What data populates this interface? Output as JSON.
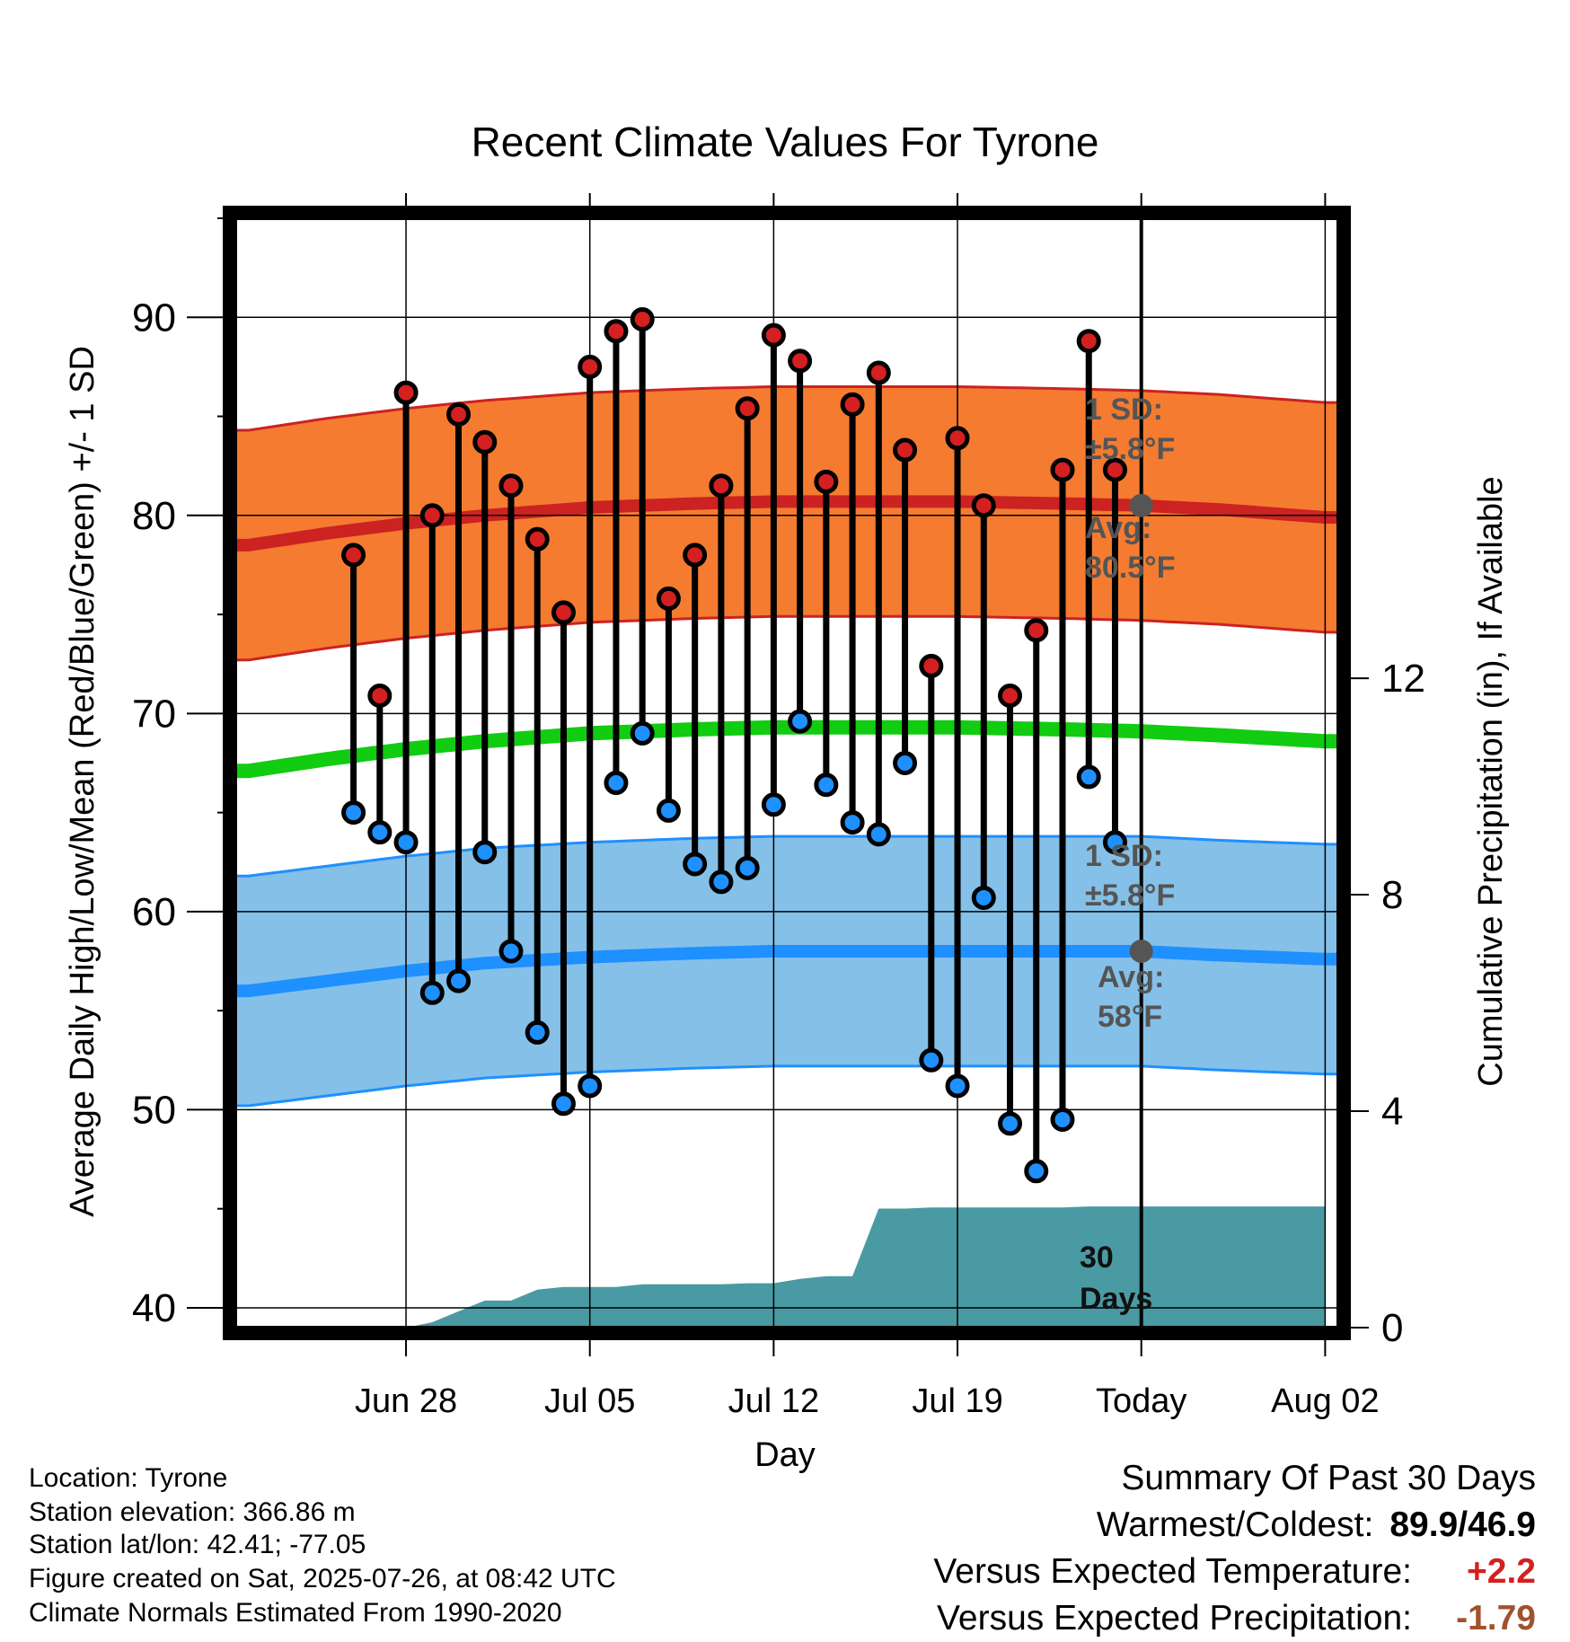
{
  "chart_data": {
    "type": "line",
    "title": "Recent Climate Values For Tyrone",
    "xlabel": "Day",
    "ylabel": "Average Daily High/Low/Mean (Red/Blue/Green) +/- 1 SD",
    "y2label": "Cumulative Precipitation (in), If Available",
    "ylim": [
      39,
      95
    ],
    "y2lim": [
      0,
      20.5
    ],
    "xlim": [
      -3.5,
      38.5
    ],
    "x_units": "days from Jun 25",
    "x_tick_days": [
      3,
      10,
      17,
      24,
      31,
      38
    ],
    "x_tick_labels": [
      "Jun 28",
      "Jul 05",
      "Jul 12",
      "Jul 19",
      "Today",
      "Aug 02"
    ],
    "y_ticks": [
      40,
      50,
      60,
      70,
      80,
      90
    ],
    "y2_ticks": [
      0,
      4,
      8,
      12
    ],
    "grid": true,
    "today_day": 31,
    "days": [
      1,
      2,
      3,
      4,
      5,
      6,
      7,
      8,
      9,
      10,
      11,
      12,
      13,
      14,
      15,
      16,
      17,
      18,
      19,
      20,
      21,
      22,
      23,
      24,
      25,
      26,
      27,
      28,
      29,
      30
    ],
    "daily_high": [
      78.0,
      70.9,
      86.2,
      80.0,
      85.1,
      83.7,
      81.5,
      78.8,
      75.1,
      87.5,
      89.3,
      89.9,
      75.8,
      78.0,
      81.5,
      85.4,
      89.1,
      87.8,
      81.7,
      85.6,
      87.2,
      83.3,
      72.4,
      83.9,
      80.5,
      70.9,
      74.2,
      82.3,
      88.8,
      82.3
    ],
    "daily_low": [
      65.0,
      64.0,
      63.5,
      55.9,
      56.5,
      63.0,
      58.0,
      53.9,
      50.3,
      51.2,
      66.5,
      69.0,
      65.1,
      62.4,
      61.5,
      62.2,
      65.4,
      69.6,
      66.4,
      64.5,
      63.9,
      67.5,
      52.5,
      51.2,
      60.7,
      49.3,
      46.9,
      49.5,
      66.8,
      63.5
    ],
    "normal_high": {
      "days": [
        -3,
        0,
        3,
        6,
        10,
        14,
        17,
        20,
        24,
        28,
        31,
        34,
        38
      ],
      "values": [
        78.5,
        79.1,
        79.6,
        80.0,
        80.4,
        80.6,
        80.7,
        80.7,
        80.7,
        80.6,
        80.5,
        80.3,
        79.9
      ],
      "sd": 5.8
    },
    "normal_low": {
      "days": [
        -3,
        0,
        3,
        6,
        10,
        14,
        17,
        20,
        24,
        28,
        31,
        34,
        38
      ],
      "values": [
        56.0,
        56.5,
        57.0,
        57.4,
        57.7,
        57.9,
        58.0,
        58.0,
        58.0,
        58.0,
        58.0,
        57.8,
        57.6
      ],
      "sd": 5.8
    },
    "normal_mean": {
      "days": [
        -3,
        0,
        3,
        6,
        10,
        14,
        17,
        20,
        24,
        28,
        31,
        34,
        38
      ],
      "values": [
        67.1,
        67.7,
        68.2,
        68.6,
        69.0,
        69.2,
        69.3,
        69.3,
        69.3,
        69.2,
        69.1,
        68.9,
        68.6
      ]
    },
    "precip_cumulative": {
      "days": [
        -3,
        3,
        4,
        5,
        6,
        7,
        8,
        9,
        10,
        11,
        12,
        13,
        14,
        15,
        16,
        17,
        18,
        19,
        20,
        21,
        22,
        23,
        24,
        25,
        26,
        27,
        28,
        29,
        30,
        31,
        38
      ],
      "values": [
        0,
        0,
        0.1,
        0.3,
        0.5,
        0.5,
        0.7,
        0.75,
        0.75,
        0.75,
        0.8,
        0.8,
        0.8,
        0.8,
        0.82,
        0.82,
        0.9,
        0.95,
        0.95,
        2.2,
        2.2,
        2.22,
        2.22,
        2.22,
        2.22,
        2.22,
        2.22,
        2.24,
        2.24,
        2.24,
        2.24
      ]
    },
    "colors": {
      "high_band": "#f47b30",
      "high_line": "#cc2222",
      "low_band": "#85c0e8",
      "low_line": "#1e90ff",
      "mean_line": "#11cc11",
      "precip": "#4a9aa3",
      "high_dot": "#d42020",
      "low_dot": "#1e90ff",
      "annotation": "#555555"
    },
    "annotations": {
      "high_sd_l1": "1 SD:",
      "high_sd_l2": "±5.8°F",
      "high_avg_l1": "Avg:",
      "high_avg_l2": "80.5°F",
      "low_sd_l1": "1 SD:",
      "low_sd_l2": "±5.8°F",
      "low_avg_l1": "Avg:",
      "low_avg_l2": "58°F",
      "days_l1": "30",
      "days_l2": "Days"
    }
  },
  "info": {
    "location": "Location: Tyrone",
    "elevation": "Station elevation: 366.86 m",
    "latlon": "Station lat/lon: 42.41; -77.05",
    "created": "Figure created on Sat, 2025-07-26, at 08:42 UTC",
    "normals": "Climate Normals Estimated From 1990-2020"
  },
  "summary": {
    "heading": "Summary Of Past 30 Days",
    "warm_label": "Warmest/Coldest:",
    "warm_value": "89.9/46.9",
    "temp_label": "Versus Expected Temperature:",
    "temp_value": "+2.2",
    "temp_color": "#d42020",
    "precip_label": "Versus Expected Precipitation:",
    "precip_value": "-1.79",
    "precip_color": "#a0522d"
  }
}
